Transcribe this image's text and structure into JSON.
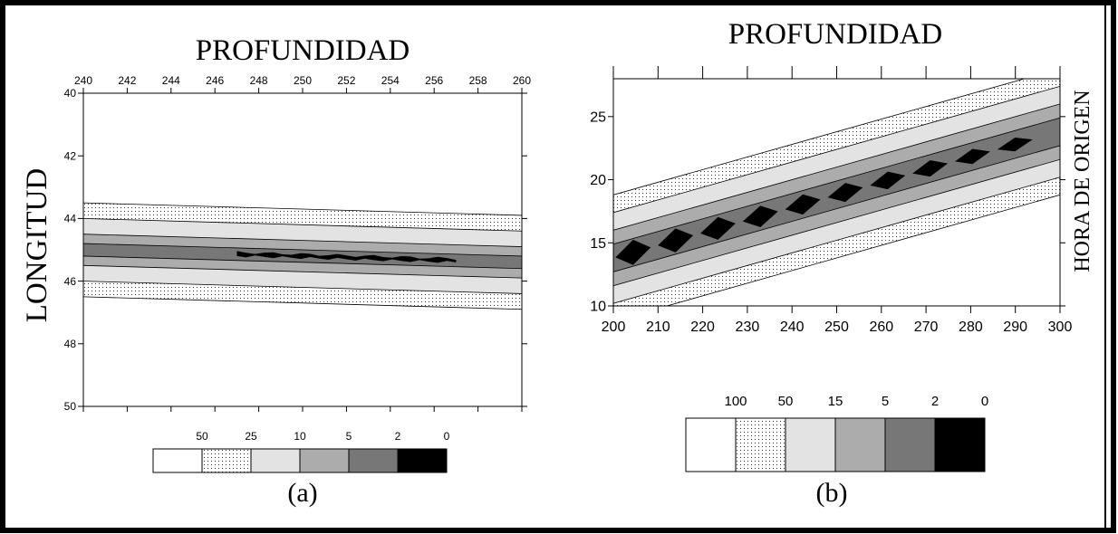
{
  "chart_data": [
    {
      "panel": "a",
      "type": "heatmap",
      "caption": "(a)",
      "title": "PROFUNDIDAD",
      "xlabel": "PROFUNDIDAD",
      "ylabel": "LONGITUD",
      "xlim": [
        240,
        260
      ],
      "ylim": [
        40,
        50
      ],
      "y_inverted": true,
      "x_ticks": [
        "240",
        "242",
        "244",
        "246",
        "248",
        "250",
        "252",
        "254",
        "256",
        "258",
        "260"
      ],
      "y_ticks": [
        "40",
        "42",
        "44",
        "46",
        "48",
        "50"
      ],
      "legend": {
        "placement": "bottom",
        "labels": [
          "50",
          "25",
          "10",
          "5",
          "2",
          "0"
        ],
        "classes": [
          "white",
          "dotted",
          "light-gray",
          "mid-gray",
          "dark-gray",
          "black"
        ]
      },
      "contours": {
        "center_left": [
          240,
          45.0
        ],
        "center_right": [
          260,
          45.4
        ],
        "half_widths": [
          1.5,
          1.0,
          0.5,
          0.2
        ],
        "core_x_range": [
          247,
          257
        ],
        "core_half_width": 0.1
      }
    },
    {
      "panel": "b",
      "type": "heatmap",
      "caption": "(b)",
      "title": "PROFUNDIDAD",
      "xlabel": "PROFUNDIDAD",
      "ylabel": "HORA DE ORIGEN",
      "xlim": [
        200,
        300
      ],
      "ylim": [
        10,
        28
      ],
      "x_ticks": [
        "200",
        "210",
        "220",
        "230",
        "240",
        "250",
        "260",
        "270",
        "280",
        "290",
        "300"
      ],
      "y_ticks": [
        "10",
        "15",
        "20",
        "25"
      ],
      "legend": {
        "placement": "bottom",
        "labels": [
          "100",
          "50",
          "15",
          "5",
          "2",
          "0"
        ],
        "classes": [
          "white",
          "dotted",
          "light-gray",
          "mid-gray",
          "dark-gray",
          "black"
        ]
      },
      "contours": {
        "center_left": [
          200,
          13.8
        ],
        "center_right": [
          300,
          23.8
        ],
        "half_widths": [
          5.0,
          3.6,
          2.2,
          1.1
        ],
        "core_x_range": [
          200,
          295
        ],
        "core_segments": 10
      }
    }
  ],
  "colors": {
    "white": "#ffffff",
    "light-gray": "#e3e3e3",
    "mid-gray": "#acacac",
    "dark-gray": "#777777",
    "black": "#000000",
    "dotted": "#ffffff"
  }
}
